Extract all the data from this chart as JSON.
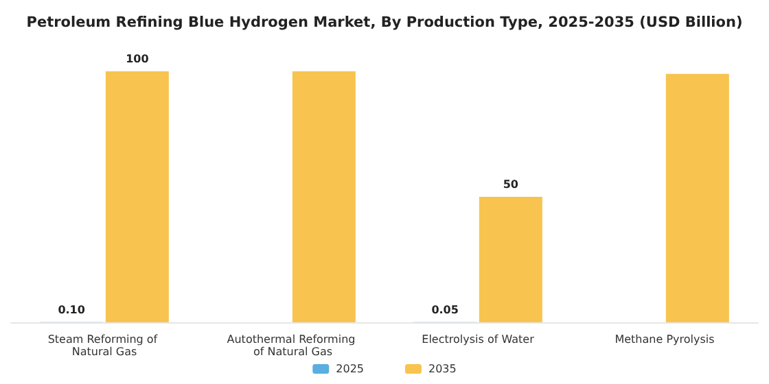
{
  "chart_data": {
    "type": "bar",
    "title": "Petroleum Refining Blue Hydrogen Market, By Production Type, 2025-2035 (USD Billion)",
    "categories": [
      "Steam Reforming of Natural Gas",
      "Autothermal Reforming of Natural Gas",
      "Electrolysis of Water",
      "Methane Pyrolysis"
    ],
    "series": [
      {
        "name": "2025",
        "color": "#5aaee0",
        "values": [
          0.1,
          null,
          0.05,
          null
        ],
        "value_labels": [
          "0.10",
          null,
          "0.05",
          null
        ]
      },
      {
        "name": "2035",
        "color": "#f8c44f",
        "values": [
          100,
          100,
          50,
          99
        ],
        "value_labels": [
          "100",
          null,
          "50",
          null
        ]
      }
    ],
    "legend": "bottom"
  }
}
